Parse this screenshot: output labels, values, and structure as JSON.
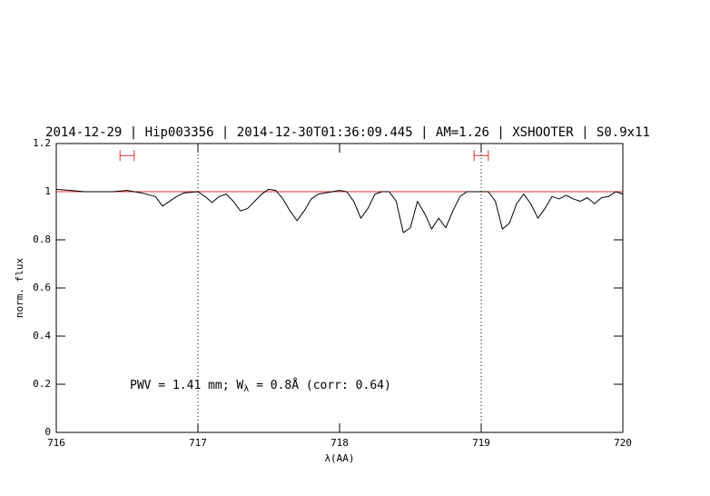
{
  "chart_data": {
    "type": "line",
    "title": "2014-12-29 | Hip003356 | 2014-12-30T01:36:09.445 | AM=1.26 | XSHOOTER | S0.9x11",
    "xlabel": "λ(AA)",
    "ylabel": "norm. flux",
    "annotation": [
      "PWV = 1.41 mm; W",
      "λ",
      " = 0.8Å (corr: 0.64)"
    ],
    "xlim": [
      716,
      720
    ],
    "ylim": [
      0,
      1.2
    ],
    "xticks": [
      716,
      717,
      718,
      719,
      720
    ],
    "yticks": [
      0,
      0.2,
      0.4,
      0.6,
      0.8,
      1,
      1.2
    ],
    "vlines": [
      717,
      719
    ],
    "continuum": {
      "color": "#e03030",
      "value": 1
    },
    "ranges": {
      "color": "#e03030",
      "y": 1.15,
      "spans": [
        [
          716.45,
          716.55
        ],
        [
          718.95,
          719.05
        ]
      ]
    },
    "series": [
      {
        "color": "#000000",
        "x": [
          716.0,
          716.1,
          716.2,
          716.3,
          716.4,
          716.5,
          716.6,
          716.7,
          716.75,
          716.8,
          716.85,
          716.9,
          717.0,
          717.05,
          717.1,
          717.15,
          717.2,
          717.25,
          717.3,
          717.35,
          717.4,
          717.45,
          717.5,
          717.55,
          717.6,
          717.65,
          717.7,
          717.75,
          717.8,
          717.85,
          717.9,
          718.0,
          718.05,
          718.1,
          718.15,
          718.2,
          718.25,
          718.3,
          718.35,
          718.4,
          718.45,
          718.5,
          718.55,
          718.6,
          718.65,
          718.7,
          718.75,
          718.8,
          718.85,
          718.9,
          719.0,
          719.05,
          719.1,
          719.15,
          719.2,
          719.25,
          719.3,
          719.35,
          719.4,
          719.45,
          719.5,
          719.55,
          719.6,
          719.65,
          719.7,
          719.75,
          719.8,
          719.85,
          719.9,
          719.95,
          720.0
        ],
        "values": [
          1.01,
          1.005,
          1.0,
          1.0,
          1.0,
          1.005,
          0.995,
          0.98,
          0.94,
          0.96,
          0.98,
          0.995,
          1.0,
          0.98,
          0.955,
          0.98,
          0.99,
          0.96,
          0.92,
          0.93,
          0.96,
          0.99,
          1.01,
          1.005,
          0.97,
          0.92,
          0.88,
          0.92,
          0.97,
          0.99,
          0.995,
          1.005,
          1.0,
          0.96,
          0.89,
          0.93,
          0.99,
          1.0,
          1.0,
          0.96,
          0.83,
          0.85,
          0.96,
          0.91,
          0.845,
          0.89,
          0.85,
          0.92,
          0.98,
          1.0,
          1.0,
          1.0,
          0.96,
          0.845,
          0.87,
          0.95,
          0.99,
          0.95,
          0.89,
          0.93,
          0.98,
          0.97,
          0.985,
          0.97,
          0.96,
          0.975,
          0.95,
          0.975,
          0.98,
          1.0,
          0.99
        ]
      }
    ],
    "title_color": "#1010d0"
  }
}
